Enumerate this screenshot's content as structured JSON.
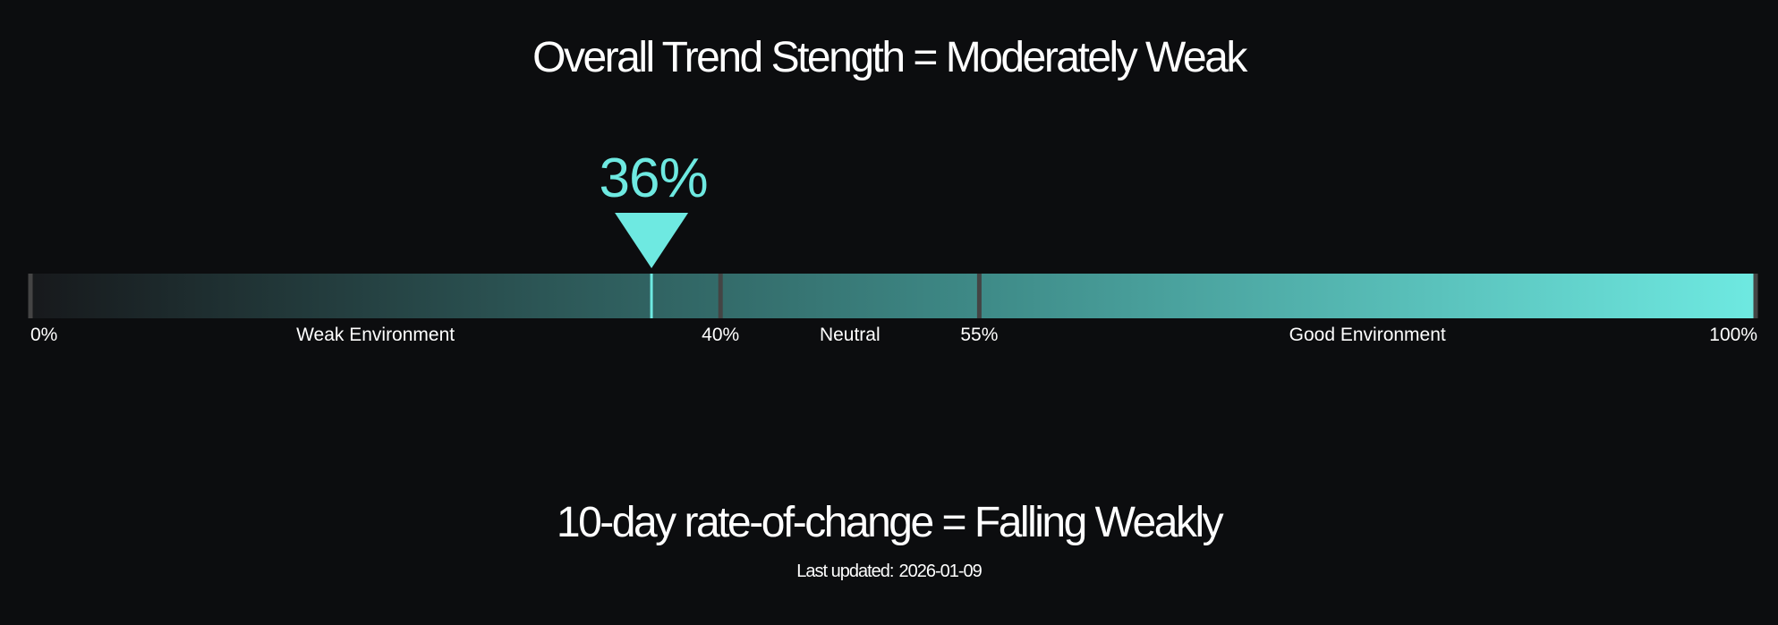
{
  "trend_title": "Overall Trend Stength = Moderately Weak",
  "roc_title": "10-day rate-of-change = Falling Weakly",
  "last_updated": {
    "label": "Last updated:",
    "date": "2026-01-09"
  },
  "colors": {
    "background": "#0c0d0f",
    "gauge_start": "#17191c",
    "gauge_mid": "#3e8a87",
    "gauge_end": "#6ee9e1",
    "marker": "#6ee9e1",
    "divider": "#444444",
    "text": "#ffffff"
  },
  "chart_data": {
    "type": "gauge",
    "value": 36,
    "value_label": "36%",
    "range": [
      0,
      100
    ],
    "thresholds": [
      {
        "value": 0,
        "label": "0%"
      },
      {
        "value": 40,
        "label": "40%"
      },
      {
        "value": 55,
        "label": "55%"
      },
      {
        "value": 100,
        "label": "100%"
      }
    ],
    "zones": [
      {
        "label": "Weak Environment",
        "from": 0,
        "to": 40
      },
      {
        "label": "Neutral",
        "from": 40,
        "to": 55
      },
      {
        "label": "Good Environment",
        "from": 55,
        "to": 100
      }
    ]
  }
}
